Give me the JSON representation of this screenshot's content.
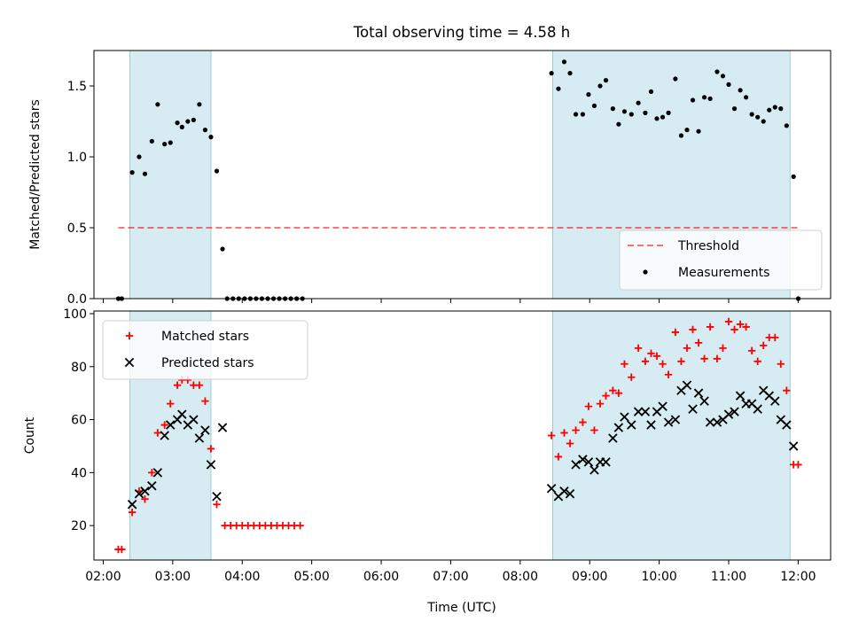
{
  "title": "Total observing time = 4.58 h",
  "xlabel": "Time (UTC)",
  "x_tick_labels": [
    "02:00",
    "03:00",
    "04:00",
    "05:00",
    "06:00",
    "07:00",
    "08:00",
    "09:00",
    "10:00",
    "11:00",
    "12:00"
  ],
  "colors": {
    "shade": "#add8e6",
    "threshold": "#ff0000",
    "measurements": "#000000",
    "matched": "#ff0000",
    "predicted": "#000000"
  },
  "chart_data": [
    {
      "type": "scatter",
      "ylabel": "Matched/Predicted stars",
      "xlim": [
        "01:52",
        "12:28"
      ],
      "ylim": [
        0,
        1.75
      ],
      "y_ticks": [
        "0.0",
        "0.5",
        "1.0",
        "1.5"
      ],
      "legend_position": "lower-right",
      "shaded_intervals": [
        [
          "02:23",
          "03:33"
        ],
        [
          "08:28",
          "11:53"
        ]
      ],
      "threshold": {
        "name": "Threshold",
        "value": 0.5,
        "x_range": [
          "02:13",
          "12:00"
        ]
      },
      "series": [
        {
          "name": "Measurements",
          "points": [
            [
              "02:13",
              0.0
            ],
            [
              "02:16",
              0.0
            ],
            [
              "02:25",
              0.89
            ],
            [
              "02:31",
              1.0
            ],
            [
              "02:36",
              0.88
            ],
            [
              "02:42",
              1.11
            ],
            [
              "02:47",
              1.37
            ],
            [
              "02:53",
              1.09
            ],
            [
              "02:58",
              1.1
            ],
            [
              "03:04",
              1.24
            ],
            [
              "03:08",
              1.21
            ],
            [
              "03:13",
              1.25
            ],
            [
              "03:18",
              1.26
            ],
            [
              "03:23",
              1.37
            ],
            [
              "03:28",
              1.19
            ],
            [
              "03:33",
              1.14
            ],
            [
              "03:38",
              0.9
            ],
            [
              "03:43",
              0.35
            ],
            [
              "03:47",
              0.0
            ],
            [
              "03:52",
              0.0
            ],
            [
              "03:57",
              0.0
            ],
            [
              "04:02",
              0.0
            ],
            [
              "04:07",
              0.0
            ],
            [
              "04:12",
              0.0
            ],
            [
              "04:17",
              0.0
            ],
            [
              "04:22",
              0.0
            ],
            [
              "04:27",
              0.0
            ],
            [
              "04:32",
              0.0
            ],
            [
              "04:37",
              0.0
            ],
            [
              "04:42",
              0.0
            ],
            [
              "04:47",
              0.0
            ],
            [
              "04:52",
              0.0
            ],
            [
              "08:27",
              1.59
            ],
            [
              "08:33",
              1.48
            ],
            [
              "08:38",
              1.67
            ],
            [
              "08:43",
              1.59
            ],
            [
              "08:48",
              1.3
            ],
            [
              "08:54",
              1.3
            ],
            [
              "08:59",
              1.44
            ],
            [
              "09:04",
              1.36
            ],
            [
              "09:09",
              1.5
            ],
            [
              "09:14",
              1.54
            ],
            [
              "09:20",
              1.34
            ],
            [
              "09:25",
              1.23
            ],
            [
              "09:30",
              1.32
            ],
            [
              "09:36",
              1.3
            ],
            [
              "09:42",
              1.38
            ],
            [
              "09:48",
              1.31
            ],
            [
              "09:53",
              1.46
            ],
            [
              "09:58",
              1.27
            ],
            [
              "10:03",
              1.28
            ],
            [
              "10:08",
              1.31
            ],
            [
              "10:14",
              1.55
            ],
            [
              "10:19",
              1.15
            ],
            [
              "10:24",
              1.19
            ],
            [
              "10:29",
              1.4
            ],
            [
              "10:34",
              1.18
            ],
            [
              "10:39",
              1.42
            ],
            [
              "10:44",
              1.41
            ],
            [
              "10:50",
              1.6
            ],
            [
              "10:55",
              1.57
            ],
            [
              "11:00",
              1.51
            ],
            [
              "11:05",
              1.34
            ],
            [
              "11:10",
              1.47
            ],
            [
              "11:15",
              1.42
            ],
            [
              "11:20",
              1.3
            ],
            [
              "11:25",
              1.28
            ],
            [
              "11:30",
              1.25
            ],
            [
              "11:35",
              1.33
            ],
            [
              "11:40",
              1.35
            ],
            [
              "11:45",
              1.34
            ],
            [
              "11:50",
              1.22
            ],
            [
              "11:56",
              0.86
            ],
            [
              "12:00",
              0.0
            ]
          ]
        }
      ]
    },
    {
      "type": "scatter",
      "ylabel": "Count",
      "xlim": [
        "01:52",
        "12:28"
      ],
      "ylim": [
        7,
        101
      ],
      "y_ticks": [
        "20",
        "40",
        "60",
        "80",
        "100"
      ],
      "legend_position": "upper-left",
      "shaded_intervals": [
        [
          "02:23",
          "03:33"
        ],
        [
          "08:28",
          "11:53"
        ]
      ],
      "series": [
        {
          "name": "Matched stars",
          "marker": "plus",
          "points": [
            [
              "02:13",
              11
            ],
            [
              "02:16",
              11
            ],
            [
              "02:25",
              25
            ],
            [
              "02:31",
              33
            ],
            [
              "02:36",
              30
            ],
            [
              "02:42",
              40
            ],
            [
              "02:47",
              55
            ],
            [
              "02:53",
              58
            ],
            [
              "02:58",
              66
            ],
            [
              "03:04",
              73
            ],
            [
              "03:08",
              75
            ],
            [
              "03:13",
              75
            ],
            [
              "03:18",
              73
            ],
            [
              "03:23",
              73
            ],
            [
              "03:28",
              67
            ],
            [
              "03:33",
              49
            ],
            [
              "03:38",
              28
            ],
            [
              "03:45",
              20
            ],
            [
              "03:50",
              20
            ],
            [
              "03:55",
              20
            ],
            [
              "04:00",
              20
            ],
            [
              "04:05",
              20
            ],
            [
              "04:10",
              20
            ],
            [
              "04:15",
              20
            ],
            [
              "04:20",
              20
            ],
            [
              "04:25",
              20
            ],
            [
              "04:30",
              20
            ],
            [
              "04:35",
              20
            ],
            [
              "04:40",
              20
            ],
            [
              "04:45",
              20
            ],
            [
              "04:50",
              20
            ],
            [
              "08:27",
              54
            ],
            [
              "08:33",
              46
            ],
            [
              "08:38",
              55
            ],
            [
              "08:43",
              51
            ],
            [
              "08:48",
              56
            ],
            [
              "08:54",
              59
            ],
            [
              "08:59",
              65
            ],
            [
              "09:04",
              56
            ],
            [
              "09:09",
              66
            ],
            [
              "09:14",
              69
            ],
            [
              "09:20",
              71
            ],
            [
              "09:25",
              70
            ],
            [
              "09:30",
              81
            ],
            [
              "09:36",
              76
            ],
            [
              "09:42",
              87
            ],
            [
              "09:48",
              82
            ],
            [
              "09:53",
              85
            ],
            [
              "09:58",
              84
            ],
            [
              "10:03",
              81
            ],
            [
              "10:08",
              77
            ],
            [
              "10:14",
              93
            ],
            [
              "10:19",
              82
            ],
            [
              "10:24",
              87
            ],
            [
              "10:29",
              94
            ],
            [
              "10:34",
              89
            ],
            [
              "10:39",
              83
            ],
            [
              "10:44",
              95
            ],
            [
              "10:50",
              83
            ],
            [
              "10:55",
              87
            ],
            [
              "11:00",
              97
            ],
            [
              "11:05",
              94
            ],
            [
              "11:10",
              96
            ],
            [
              "11:15",
              95
            ],
            [
              "11:20",
              86
            ],
            [
              "11:25",
              82
            ],
            [
              "11:30",
              88
            ],
            [
              "11:35",
              91
            ],
            [
              "11:40",
              91
            ],
            [
              "11:45",
              81
            ],
            [
              "11:50",
              71
            ],
            [
              "11:56",
              43
            ],
            [
              "12:00",
              43
            ]
          ]
        },
        {
          "name": "Predicted stars",
          "marker": "x",
          "points": [
            [
              "02:25",
              28
            ],
            [
              "02:31",
              32
            ],
            [
              "02:36",
              33
            ],
            [
              "02:42",
              35
            ],
            [
              "02:47",
              40
            ],
            [
              "02:53",
              54
            ],
            [
              "02:58",
              58
            ],
            [
              "03:04",
              60
            ],
            [
              "03:08",
              62
            ],
            [
              "03:13",
              58
            ],
            [
              "03:18",
              60
            ],
            [
              "03:23",
              53
            ],
            [
              "03:28",
              56
            ],
            [
              "03:33",
              43
            ],
            [
              "03:38",
              31
            ],
            [
              "03:43",
              57
            ],
            [
              "08:27",
              34
            ],
            [
              "08:33",
              31
            ],
            [
              "08:38",
              33
            ],
            [
              "08:43",
              32
            ],
            [
              "08:48",
              43
            ],
            [
              "08:54",
              45
            ],
            [
              "08:59",
              44
            ],
            [
              "09:04",
              41
            ],
            [
              "09:09",
              44
            ],
            [
              "09:14",
              44
            ],
            [
              "09:20",
              53
            ],
            [
              "09:25",
              57
            ],
            [
              "09:30",
              61
            ],
            [
              "09:36",
              58
            ],
            [
              "09:42",
              63
            ],
            [
              "09:48",
              63
            ],
            [
              "09:53",
              58
            ],
            [
              "09:58",
              63
            ],
            [
              "10:03",
              65
            ],
            [
              "10:08",
              59
            ],
            [
              "10:14",
              60
            ],
            [
              "10:19",
              71
            ],
            [
              "10:24",
              73
            ],
            [
              "10:29",
              64
            ],
            [
              "10:34",
              70
            ],
            [
              "10:39",
              67
            ],
            [
              "10:44",
              59
            ],
            [
              "10:50",
              59
            ],
            [
              "10:55",
              60
            ],
            [
              "11:00",
              62
            ],
            [
              "11:05",
              63
            ],
            [
              "11:10",
              69
            ],
            [
              "11:15",
              66
            ],
            [
              "11:20",
              66
            ],
            [
              "11:25",
              64
            ],
            [
              "11:30",
              71
            ],
            [
              "11:35",
              69
            ],
            [
              "11:40",
              67
            ],
            [
              "11:45",
              60
            ],
            [
              "11:50",
              58
            ],
            [
              "11:56",
              50
            ]
          ]
        }
      ]
    }
  ]
}
